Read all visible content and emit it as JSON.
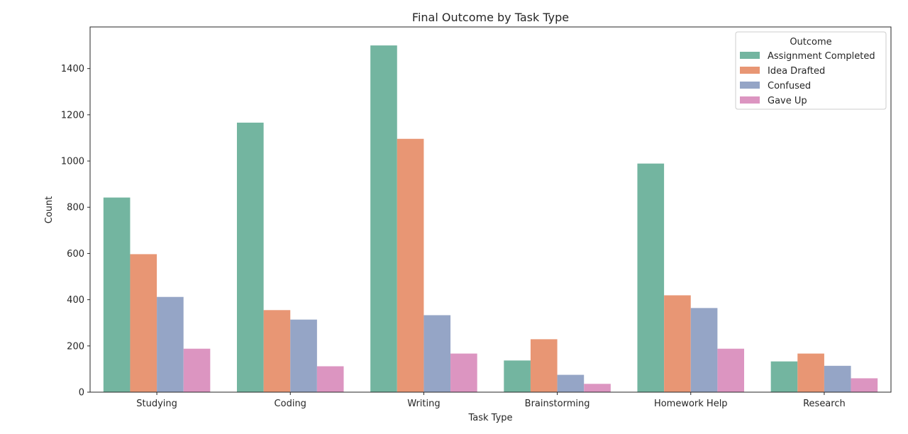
{
  "chart_data": {
    "type": "bar",
    "title": "Final Outcome by Task Type",
    "xlabel": "Task Type",
    "ylabel": "Count",
    "ylim": [
      0,
      1580
    ],
    "yticks": [
      0,
      200,
      400,
      600,
      800,
      1000,
      1200,
      1400
    ],
    "categories": [
      "Studying",
      "Coding",
      "Writing",
      "Brainstorming",
      "Homework Help",
      "Research"
    ],
    "legend_title": "Outcome",
    "legend_position": "top-right",
    "grid": false,
    "series": [
      {
        "name": "Assignment Completed",
        "color": "#73b5a0",
        "values": [
          842,
          1166,
          1500,
          137,
          989,
          133
        ]
      },
      {
        "name": "Idea Drafted",
        "color": "#e89674",
        "values": [
          597,
          355,
          1096,
          229,
          419,
          167
        ]
      },
      {
        "name": "Confused",
        "color": "#95a5c6",
        "values": [
          412,
          314,
          333,
          75,
          364,
          114
        ]
      },
      {
        "name": "Gave Up",
        "color": "#dc95c1",
        "values": [
          188,
          112,
          167,
          36,
          188,
          60
        ]
      }
    ]
  }
}
